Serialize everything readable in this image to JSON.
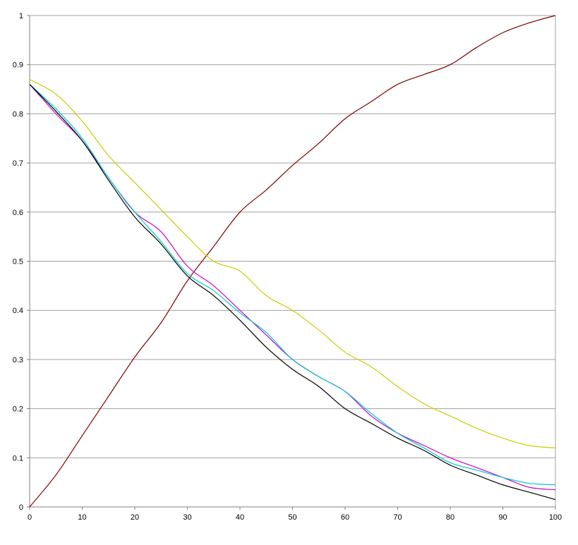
{
  "chart_data": {
    "type": "line",
    "title": "",
    "xlabel": "",
    "ylabel": "",
    "xlim": [
      0,
      100
    ],
    "ylim": [
      0,
      1
    ],
    "grid": "horizontal",
    "legend": "none",
    "x_ticks": [
      "0",
      "10",
      "20",
      "30",
      "40",
      "50",
      "60",
      "70",
      "80",
      "90",
      "100"
    ],
    "y_ticks": [
      "0",
      "0.1",
      "0.2",
      "0.3",
      "0.4",
      "0.5",
      "0.6",
      "0.7",
      "0.8",
      "0.9",
      "1"
    ],
    "x": [
      0,
      5,
      10,
      15,
      20,
      25,
      30,
      35,
      40,
      45,
      50,
      55,
      60,
      65,
      70,
      75,
      80,
      85,
      90,
      95,
      100
    ],
    "series": [
      {
        "color": "#800000",
        "values": [
          0,
          0.065,
          0.145,
          0.225,
          0.305,
          0.375,
          0.46,
          0.53,
          0.6,
          0.645,
          0.695,
          0.74,
          0.79,
          0.825,
          0.86,
          0.88,
          0.9,
          0.935,
          0.965,
          0.985,
          1.0
        ]
      },
      {
        "color": "#cccc00",
        "values": [
          0.87,
          0.84,
          0.785,
          0.715,
          0.66,
          0.605,
          0.55,
          0.5,
          0.48,
          0.43,
          0.4,
          0.36,
          0.315,
          0.285,
          0.245,
          0.21,
          0.185,
          0.16,
          0.14,
          0.125,
          0.12
        ]
      },
      {
        "color": "#cc00cc",
        "values": [
          0.86,
          0.8,
          0.745,
          0.67,
          0.6,
          0.56,
          0.49,
          0.45,
          0.4,
          0.35,
          0.3,
          0.265,
          0.235,
          0.185,
          0.15,
          0.125,
          0.1,
          0.08,
          0.06,
          0.04,
          0.035
        ]
      },
      {
        "color": "#00cccc",
        "values": [
          0.86,
          0.81,
          0.75,
          0.67,
          0.6,
          0.54,
          0.475,
          0.44,
          0.395,
          0.355,
          0.3,
          0.265,
          0.235,
          0.19,
          0.15,
          0.12,
          0.09,
          0.075,
          0.06,
          0.048,
          0.045
        ]
      },
      {
        "color": "#000000",
        "values": [
          0.86,
          0.805,
          0.745,
          0.665,
          0.59,
          0.535,
          0.47,
          0.43,
          0.38,
          0.325,
          0.28,
          0.245,
          0.2,
          0.17,
          0.14,
          0.115,
          0.085,
          0.065,
          0.045,
          0.03,
          0.015
        ]
      }
    ]
  }
}
